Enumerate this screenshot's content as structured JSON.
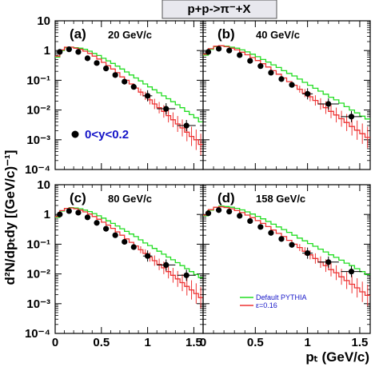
{
  "figure": {
    "title": "p+p->π⁻+X",
    "xlabel": "pₜ (GeV/c)",
    "ylabel": "d²N/dpₜdy [(GeV/c)⁻¹]",
    "annotation": "0<y<0.2",
    "legend": [
      "Default PYTHIA",
      "ε=0.16"
    ]
  },
  "chart_data": [
    {
      "type": "line",
      "panel": "(a)",
      "energy": "20 GeV/c",
      "x_scale": "linear",
      "y_scale": "log",
      "xlim": [
        0,
        1.6
      ],
      "ylim": [
        0.0001,
        10
      ],
      "xticks": [
        "0",
        "0.5",
        "1",
        "1.5"
      ],
      "yticks": [
        "10⁻⁴",
        "10⁻³",
        "10⁻²",
        "10⁻¹",
        "1",
        "10"
      ],
      "legend_colors": {
        "green": "#22dd22",
        "red": "#ee3333",
        "points": "#000000"
      },
      "series": [
        {
          "name": "Default PYTHIA",
          "x": [
            0.025,
            0.075,
            0.125,
            0.175,
            0.225,
            0.275,
            0.325,
            0.375,
            0.425,
            0.475,
            0.525,
            0.575,
            0.625,
            0.675,
            0.725,
            0.775,
            0.825,
            0.875,
            0.925,
            0.975,
            1.025,
            1.075,
            1.125,
            1.175,
            1.225,
            1.275,
            1.325,
            1.375,
            1.425,
            1.475,
            1.525,
            1.575
          ],
          "y": [
            0.6,
            1.0,
            1.25,
            1.3,
            1.25,
            1.2,
            1.1,
            0.95,
            0.8,
            0.68,
            0.55,
            0.45,
            0.37,
            0.3,
            0.24,
            0.19,
            0.15,
            0.12,
            0.095,
            0.075,
            0.06,
            0.048,
            0.038,
            0.03,
            0.024,
            0.019,
            0.015,
            0.012,
            0.009,
            0.007,
            0.0055,
            0.004
          ]
        },
        {
          "name": "ε=0.16",
          "x": [
            0.025,
            0.075,
            0.125,
            0.175,
            0.225,
            0.275,
            0.325,
            0.375,
            0.425,
            0.475,
            0.525,
            0.575,
            0.625,
            0.675,
            0.725,
            0.775,
            0.825,
            0.875,
            0.925,
            0.975,
            1.025,
            1.075,
            1.125,
            1.175,
            1.225,
            1.275,
            1.325,
            1.375,
            1.425,
            1.475,
            1.525,
            1.575
          ],
          "y": [
            0.65,
            1.05,
            1.3,
            1.3,
            1.2,
            1.1,
            0.95,
            0.8,
            0.65,
            0.52,
            0.4,
            0.31,
            0.24,
            0.18,
            0.13,
            0.1,
            0.075,
            0.055,
            0.04,
            0.03,
            0.022,
            0.016,
            0.012,
            0.009,
            0.0065,
            0.0047,
            0.0034,
            0.0025,
            0.0018,
            0.0013,
            0.001,
            0.0007
          ]
        },
        {
          "name": "",
          "x": [
            0.05,
            0.15,
            0.25,
            0.35,
            0.45,
            0.55,
            0.65,
            0.75,
            0.85,
            1.0,
            1.2,
            1.42
          ],
          "y": [
            0.9,
            1.1,
            0.9,
            0.55,
            0.38,
            0.25,
            0.15,
            0.09,
            0.06,
            0.03,
            0.011,
            0.003
          ]
        }
      ]
    },
    {
      "type": "line",
      "panel": "(b)",
      "energy": "40 GeV/c",
      "x_scale": "linear",
      "y_scale": "log",
      "xlim": [
        0,
        1.6
      ],
      "ylim": [
        0.0001,
        10
      ],
      "series": [
        {
          "name": "Default PYTHIA",
          "x": [
            0.025,
            0.075,
            0.125,
            0.175,
            0.225,
            0.275,
            0.325,
            0.375,
            0.425,
            0.475,
            0.525,
            0.575,
            0.625,
            0.675,
            0.725,
            0.775,
            0.825,
            0.875,
            0.925,
            0.975,
            1.025,
            1.075,
            1.125,
            1.175,
            1.225,
            1.275,
            1.325,
            1.375,
            1.425,
            1.475,
            1.525,
            1.575
          ],
          "y": [
            0.7,
            1.1,
            1.35,
            1.45,
            1.4,
            1.3,
            1.2,
            1.05,
            0.9,
            0.75,
            0.62,
            0.5,
            0.41,
            0.33,
            0.27,
            0.21,
            0.17,
            0.14,
            0.11,
            0.085,
            0.068,
            0.054,
            0.043,
            0.034,
            0.027,
            0.022,
            0.017,
            0.013,
            0.01,
            0.008,
            0.0062,
            0.005
          ]
        },
        {
          "name": "ε=0.16",
          "x": [
            0.025,
            0.075,
            0.125,
            0.175,
            0.225,
            0.275,
            0.325,
            0.375,
            0.425,
            0.475,
            0.525,
            0.575,
            0.625,
            0.675,
            0.725,
            0.775,
            0.825,
            0.875,
            0.925,
            0.975,
            1.025,
            1.075,
            1.125,
            1.175,
            1.225,
            1.275,
            1.325,
            1.375,
            1.425,
            1.475,
            1.525,
            1.575
          ],
          "y": [
            0.75,
            1.15,
            1.4,
            1.45,
            1.35,
            1.2,
            1.05,
            0.88,
            0.72,
            0.58,
            0.46,
            0.36,
            0.28,
            0.21,
            0.16,
            0.12,
            0.09,
            0.068,
            0.05,
            0.037,
            0.028,
            0.021,
            0.016,
            0.012,
            0.009,
            0.0068,
            0.0051,
            0.0038,
            0.0028,
            0.0021,
            0.0016,
            0.0012
          ]
        },
        {
          "name": "",
          "x": [
            0.05,
            0.15,
            0.25,
            0.35,
            0.45,
            0.55,
            0.65,
            0.75,
            0.85,
            1.0,
            1.2,
            1.42
          ],
          "y": [
            0.9,
            1.15,
            1.0,
            0.7,
            0.45,
            0.3,
            0.18,
            0.11,
            0.07,
            0.035,
            0.016,
            0.006
          ]
        }
      ]
    },
    {
      "type": "line",
      "panel": "(c)",
      "energy": "80 GeV/c",
      "x_scale": "linear",
      "y_scale": "log",
      "xlim": [
        0,
        1.6
      ],
      "ylim": [
        0.0001,
        10
      ],
      "series": [
        {
          "name": "Default PYTHIA",
          "x": [
            0.025,
            0.075,
            0.125,
            0.175,
            0.225,
            0.275,
            0.325,
            0.375,
            0.425,
            0.475,
            0.525,
            0.575,
            0.625,
            0.675,
            0.725,
            0.775,
            0.825,
            0.875,
            0.925,
            0.975,
            1.025,
            1.075,
            1.125,
            1.175,
            1.225,
            1.275,
            1.325,
            1.375,
            1.425,
            1.475,
            1.525,
            1.575
          ],
          "y": [
            0.8,
            1.3,
            1.6,
            1.7,
            1.65,
            1.55,
            1.4,
            1.25,
            1.07,
            0.9,
            0.75,
            0.61,
            0.5,
            0.41,
            0.33,
            0.27,
            0.22,
            0.18,
            0.14,
            0.11,
            0.09,
            0.072,
            0.058,
            0.046,
            0.037,
            0.03,
            0.024,
            0.019,
            0.015,
            0.012,
            0.0095,
            0.0075
          ]
        },
        {
          "name": "ε=0.16",
          "x": [
            0.025,
            0.075,
            0.125,
            0.175,
            0.225,
            0.275,
            0.325,
            0.375,
            0.425,
            0.475,
            0.525,
            0.575,
            0.625,
            0.675,
            0.725,
            0.775,
            0.825,
            0.875,
            0.925,
            0.975,
            1.025,
            1.075,
            1.125,
            1.175,
            1.225,
            1.275,
            1.325,
            1.375,
            1.425,
            1.475,
            1.525,
            1.575
          ],
          "y": [
            0.85,
            1.35,
            1.6,
            1.65,
            1.55,
            1.4,
            1.22,
            1.03,
            0.85,
            0.69,
            0.55,
            0.44,
            0.34,
            0.26,
            0.2,
            0.15,
            0.115,
            0.087,
            0.065,
            0.049,
            0.037,
            0.028,
            0.021,
            0.016,
            0.012,
            0.009,
            0.0068,
            0.0051,
            0.0038,
            0.0029,
            0.0022,
            0.0016
          ]
        },
        {
          "name": "",
          "x": [
            0.05,
            0.15,
            0.25,
            0.35,
            0.45,
            0.55,
            0.65,
            0.75,
            0.85,
            1.0,
            1.2,
            1.42
          ],
          "y": [
            1.0,
            1.3,
            1.15,
            0.8,
            0.52,
            0.33,
            0.2,
            0.12,
            0.08,
            0.04,
            0.02,
            0.009
          ]
        }
      ]
    },
    {
      "type": "line",
      "panel": "(d)",
      "energy": "158 GeV/c",
      "x_scale": "linear",
      "y_scale": "log",
      "xlim": [
        0,
        1.6
      ],
      "ylim": [
        0.0001,
        10
      ],
      "series": [
        {
          "name": "Default PYTHIA",
          "x": [
            0.025,
            0.075,
            0.125,
            0.175,
            0.225,
            0.275,
            0.325,
            0.375,
            0.425,
            0.475,
            0.525,
            0.575,
            0.625,
            0.675,
            0.725,
            0.775,
            0.825,
            0.875,
            0.925,
            0.975,
            1.025,
            1.075,
            1.125,
            1.175,
            1.225,
            1.275,
            1.325,
            1.375,
            1.425,
            1.475,
            1.525,
            1.575
          ],
          "y": [
            0.9,
            1.4,
            1.75,
            1.9,
            1.85,
            1.75,
            1.6,
            1.42,
            1.22,
            1.03,
            0.86,
            0.71,
            0.58,
            0.47,
            0.38,
            0.31,
            0.25,
            0.2,
            0.16,
            0.13,
            0.105,
            0.085,
            0.068,
            0.055,
            0.044,
            0.036,
            0.029,
            0.023,
            0.019,
            0.015,
            0.012,
            0.0095
          ]
        },
        {
          "name": "ε=0.16",
          "x": [
            0.025,
            0.075,
            0.125,
            0.175,
            0.225,
            0.275,
            0.325,
            0.375,
            0.425,
            0.475,
            0.525,
            0.575,
            0.625,
            0.675,
            0.725,
            0.775,
            0.825,
            0.875,
            0.925,
            0.975,
            1.025,
            1.075,
            1.125,
            1.175,
            1.225,
            1.275,
            1.325,
            1.375,
            1.425,
            1.475,
            1.525,
            1.575
          ],
          "y": [
            0.95,
            1.45,
            1.75,
            1.8,
            1.7,
            1.55,
            1.35,
            1.15,
            0.95,
            0.78,
            0.62,
            0.5,
            0.39,
            0.3,
            0.23,
            0.18,
            0.135,
            0.1,
            0.077,
            0.058,
            0.044,
            0.033,
            0.025,
            0.019,
            0.014,
            0.011,
            0.008,
            0.006,
            0.0045,
            0.0034,
            0.0025,
            0.0019
          ]
        },
        {
          "name": "",
          "x": [
            0.05,
            0.15,
            0.25,
            0.35,
            0.45,
            0.55,
            0.65,
            0.75,
            0.85,
            1.0,
            1.2,
            1.42
          ],
          "y": [
            1.1,
            1.4,
            1.25,
            0.9,
            0.6,
            0.38,
            0.24,
            0.15,
            0.095,
            0.05,
            0.025,
            0.012
          ]
        }
      ]
    }
  ]
}
